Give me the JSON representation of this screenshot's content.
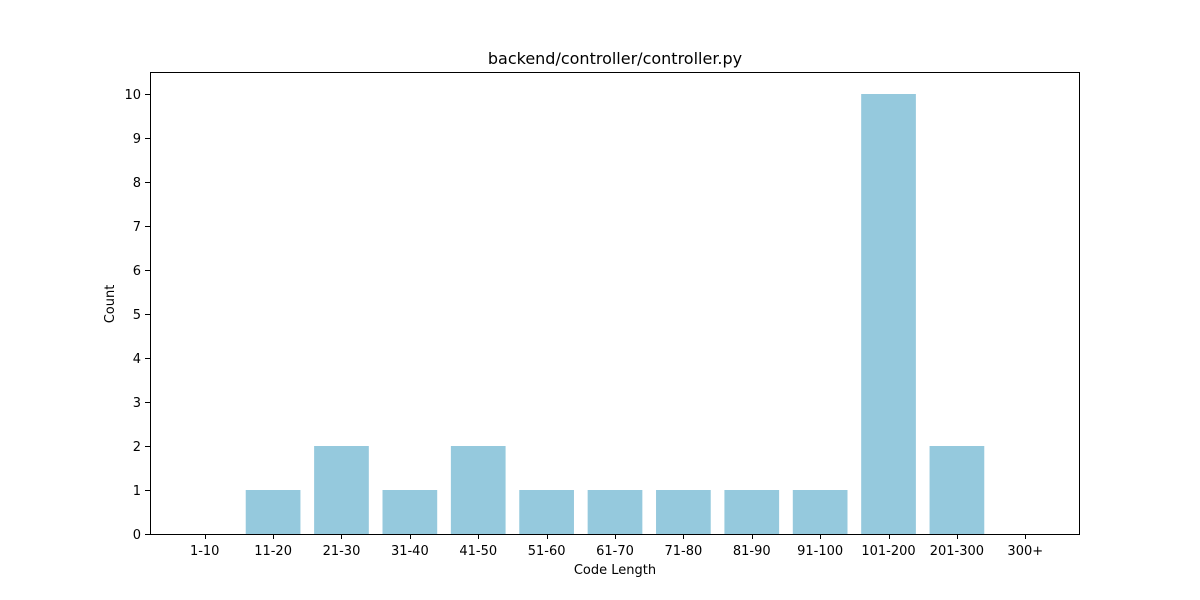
{
  "chart_data": {
    "type": "bar",
    "title": "backend/controller/controller.py",
    "xlabel": "Code Length",
    "ylabel": "Count",
    "categories": [
      "1-10",
      "11-20",
      "21-30",
      "31-40",
      "41-50",
      "51-60",
      "61-70",
      "71-80",
      "81-90",
      "91-100",
      "101-200",
      "201-300",
      "300+"
    ],
    "values": [
      0,
      1,
      2,
      1,
      2,
      1,
      1,
      1,
      1,
      1,
      10,
      2,
      0
    ],
    "ylim": [
      0,
      10.5
    ],
    "yticks": [
      "0",
      "1",
      "2",
      "3",
      "4",
      "5",
      "6",
      "7",
      "8",
      "9",
      "10"
    ],
    "bar_color": "#95c9dd",
    "grid": false,
    "legend": "none"
  }
}
